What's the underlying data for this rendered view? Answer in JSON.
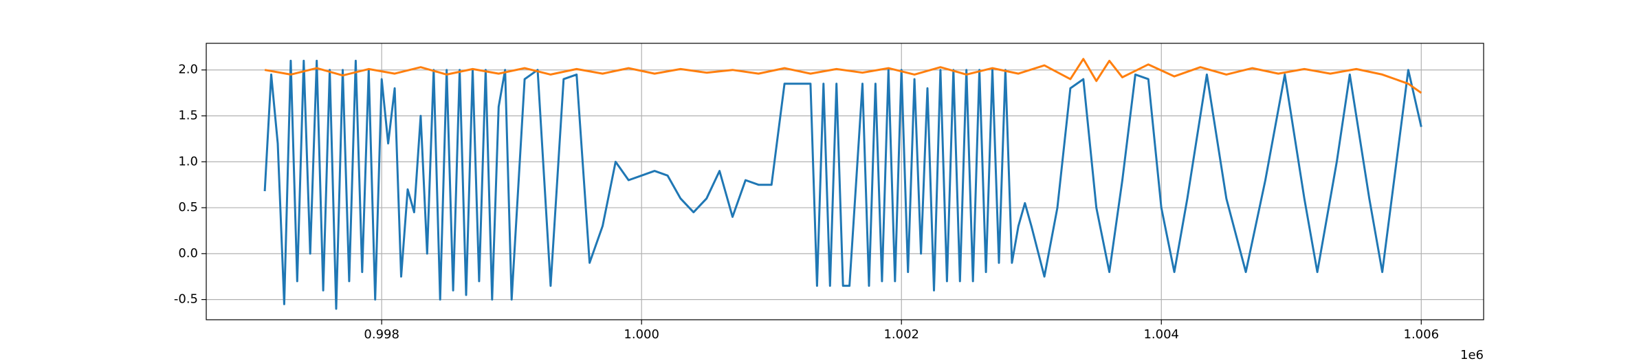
{
  "chart_data": {
    "type": "line",
    "grid": true,
    "x_offset_label": "1e6",
    "xlim": [
      996650,
      1006480
    ],
    "ylim": [
      -0.72,
      2.29
    ],
    "xticks": [
      {
        "value": 998000,
        "label": "0.998"
      },
      {
        "value": 1000000,
        "label": "1.000"
      },
      {
        "value": 1002000,
        "label": "1.002"
      },
      {
        "value": 1004000,
        "label": "1.004"
      },
      {
        "value": 1006000,
        "label": "1.006"
      }
    ],
    "yticks": [
      -0.5,
      {
        "value": 0,
        "label": "0.0"
      },
      0.5,
      {
        "value": 1,
        "label": "1.0"
      },
      1.5,
      {
        "value": 2,
        "label": "2.0"
      }
    ],
    "series": [
      {
        "color": "#1f77b4",
        "x": [
          997100,
          997150,
          997200,
          997250,
          997300,
          997350,
          997400,
          997450,
          997500,
          997550,
          997600,
          997650,
          997700,
          997750,
          997800,
          997850,
          997900,
          997950,
          998000,
          998050,
          998100,
          998150,
          998200,
          998250,
          998300,
          998350,
          998400,
          998450,
          998500,
          998550,
          998600,
          998650,
          998700,
          998750,
          998800,
          998850,
          998900,
          998950,
          999000,
          999100,
          999200,
          999300,
          999400,
          999500,
          999600,
          999700,
          999800,
          999900,
          1000000,
          1000100,
          1000200,
          1000300,
          1000400,
          1000500,
          1000600,
          1000700,
          1000800,
          1000900,
          1001000,
          1001100,
          1001200,
          1001300,
          1001350,
          1001400,
          1001450,
          1001500,
          1001550,
          1001600,
          1001700,
          1001750,
          1001800,
          1001850,
          1001900,
          1001950,
          1002000,
          1002050,
          1002100,
          1002150,
          1002200,
          1002250,
          1002300,
          1002350,
          1002400,
          1002450,
          1002500,
          1002550,
          1002600,
          1002650,
          1002700,
          1002750,
          1002800,
          1002850,
          1002900,
          1002950,
          1003000,
          1003100,
          1003200,
          1003300,
          1003400,
          1003500,
          1003600,
          1003700,
          1003800,
          1003900,
          1004000,
          1004100,
          1004200,
          1004350,
          1004500,
          1004650,
          1004800,
          1004950,
          1005100,
          1005200,
          1005350,
          1005450,
          1005600,
          1005700,
          1005900,
          1006000
        ],
        "values": [
          0.68,
          1.95,
          1.2,
          -0.55,
          2.1,
          -0.3,
          2.1,
          0.0,
          2.1,
          -0.4,
          2.0,
          -0.6,
          2.0,
          -0.3,
          2.1,
          -0.2,
          2.0,
          -0.5,
          1.9,
          1.2,
          1.8,
          -0.25,
          0.7,
          0.45,
          1.5,
          0.0,
          2.0,
          -0.5,
          2.0,
          -0.4,
          2.0,
          -0.45,
          2.0,
          -0.3,
          2.0,
          -0.5,
          1.6,
          2.0,
          -0.5,
          1.9,
          2.0,
          -0.35,
          1.9,
          1.95,
          -0.1,
          0.3,
          1.0,
          0.8,
          0.85,
          0.9,
          0.85,
          0.6,
          0.45,
          0.6,
          0.9,
          0.4,
          0.8,
          0.75,
          0.75,
          1.85,
          1.85,
          1.85,
          -0.35,
          1.85,
          -0.35,
          1.85,
          -0.35,
          -0.35,
          1.85,
          -0.35,
          1.85,
          -0.3,
          2.0,
          -0.3,
          2.0,
          -0.2,
          1.9,
          0.0,
          1.8,
          -0.4,
          2.0,
          -0.3,
          2.0,
          -0.3,
          2.0,
          -0.3,
          2.0,
          -0.2,
          2.0,
          -0.1,
          2.0,
          -0.1,
          0.3,
          0.55,
          0.3,
          -0.25,
          0.5,
          1.8,
          1.9,
          0.5,
          -0.2,
          0.8,
          1.95,
          1.9,
          0.5,
          -0.2,
          0.6,
          1.95,
          0.6,
          -0.2,
          0.8,
          1.95,
          0.6,
          -0.2,
          1.0,
          1.95,
          0.6,
          -0.2,
          2.0,
          1.38
        ]
      },
      {
        "color": "#ff7f0e",
        "x": [
          997100,
          997300,
          997500,
          997700,
          997900,
          998100,
          998300,
          998500,
          998700,
          998900,
          999100,
          999300,
          999500,
          999700,
          999900,
          1000100,
          1000300,
          1000500,
          1000700,
          1000900,
          1001100,
          1001300,
          1001500,
          1001700,
          1001900,
          1002100,
          1002300,
          1002500,
          1002700,
          1002900,
          1003100,
          1003300,
          1003400,
          1003500,
          1003600,
          1003700,
          1003900,
          1004100,
          1004300,
          1004500,
          1004700,
          1004900,
          1005100,
          1005300,
          1005500,
          1005700,
          1005900,
          1006000
        ],
        "values": [
          2.0,
          1.95,
          2.02,
          1.94,
          2.01,
          1.96,
          2.03,
          1.95,
          2.01,
          1.96,
          2.02,
          1.95,
          2.01,
          1.96,
          2.02,
          1.96,
          2.01,
          1.97,
          2.0,
          1.96,
          2.02,
          1.96,
          2.01,
          1.97,
          2.02,
          1.95,
          2.03,
          1.95,
          2.02,
          1.96,
          2.05,
          1.9,
          2.12,
          1.88,
          2.1,
          1.92,
          2.06,
          1.93,
          2.03,
          1.95,
          2.02,
          1.96,
          2.01,
          1.96,
          2.01,
          1.95,
          1.85,
          1.75
        ]
      }
    ]
  }
}
